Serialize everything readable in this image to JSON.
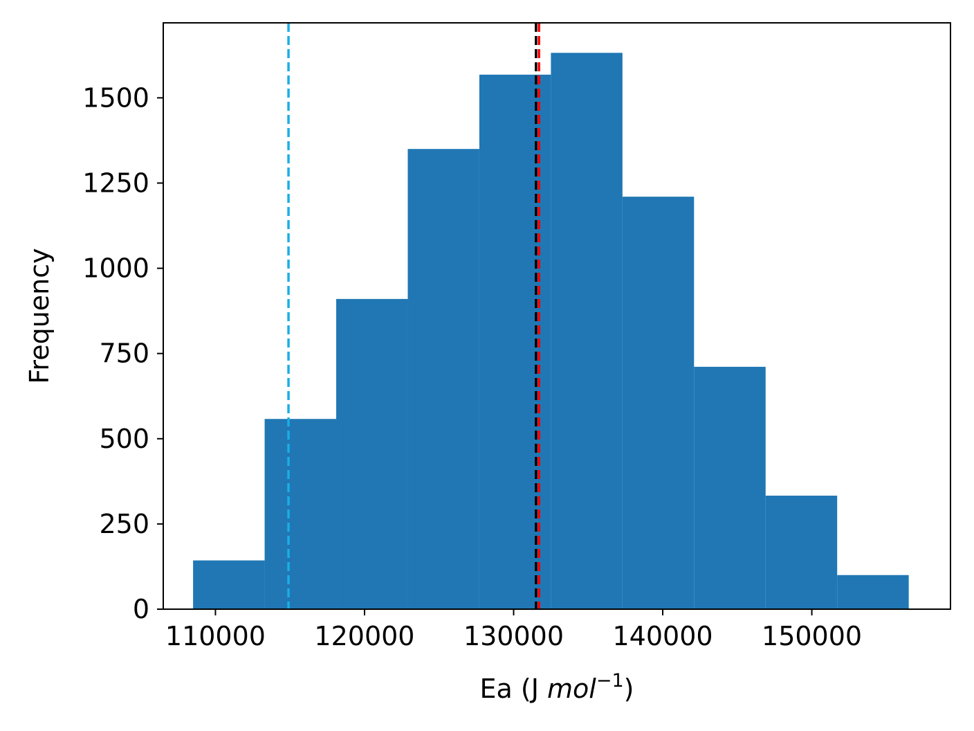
{
  "chart_data": {
    "type": "bar",
    "subtype": "histogram",
    "bin_edges": [
      108500,
      113300,
      118100,
      122900,
      127700,
      132500,
      137300,
      142100,
      146900,
      151700,
      156500
    ],
    "values": [
      143,
      558,
      910,
      1350,
      1568,
      1632,
      1210,
      711,
      333,
      100
    ],
    "xlabel": "Ea (J ",
    "xlabel_unit": "mol",
    "xlabel_exponent": "−1",
    "xlabel_close": ")",
    "ylabel": "Frequency",
    "xlim": [
      106500,
      159300
    ],
    "ylim": [
      0,
      1720
    ],
    "xticks": [
      110000,
      120000,
      130000,
      140000,
      150000
    ],
    "xtick_labels": [
      "110000",
      "120000",
      "130000",
      "140000",
      "150000"
    ],
    "yticks": [
      0,
      250,
      500,
      750,
      1000,
      1250,
      1500
    ],
    "ytick_labels": [
      "0",
      "250",
      "500",
      "750",
      "1000",
      "1250",
      "1500"
    ],
    "vlines": [
      {
        "x": 114900,
        "color": "#1aaee5",
        "style": "dashed"
      },
      {
        "x": 131700,
        "color": "#ff0000",
        "style": "dashed"
      },
      {
        "x": 131500,
        "color": "#000000",
        "style": "dashed"
      }
    ],
    "bar_color": "#2077b4",
    "grid": false,
    "legend": "none"
  }
}
